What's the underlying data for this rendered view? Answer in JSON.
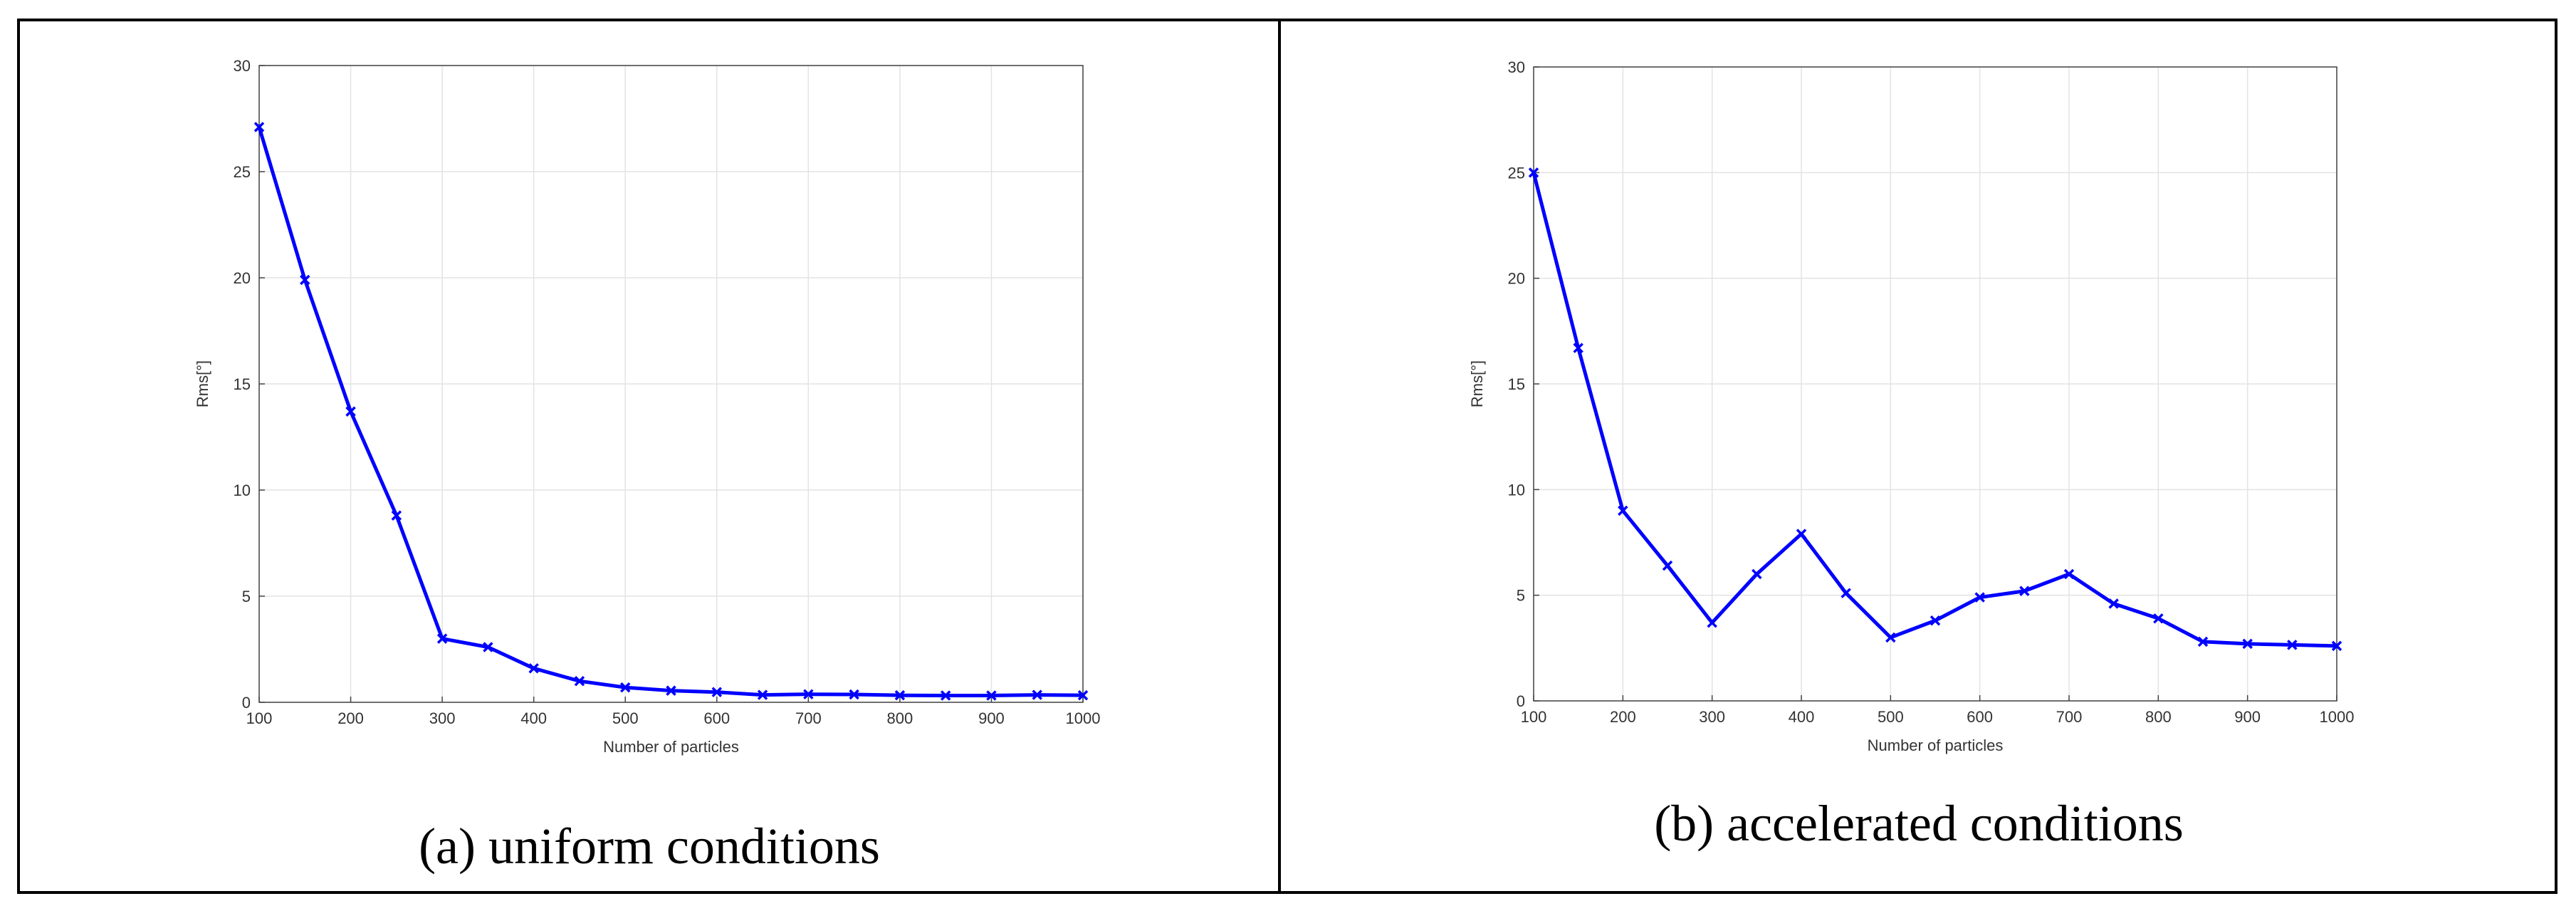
{
  "chart_data": [
    {
      "type": "line",
      "caption": "(a) uniform conditions",
      "xlabel": "Number of particles",
      "ylabel": "Rms[°]",
      "xlim": [
        100,
        1000
      ],
      "ylim": [
        0,
        30
      ],
      "xticks": [
        100,
        200,
        300,
        400,
        500,
        600,
        700,
        800,
        900,
        1000
      ],
      "yticks": [
        0,
        5,
        10,
        15,
        20,
        25,
        30
      ],
      "grid": true,
      "marker": "x",
      "color": "#0000ff",
      "x": [
        100,
        150,
        200,
        250,
        300,
        350,
        400,
        450,
        500,
        550,
        600,
        650,
        700,
        750,
        800,
        850,
        900,
        950,
        1000
      ],
      "y": [
        27.1,
        19.9,
        13.7,
        8.8,
        3.0,
        2.6,
        1.6,
        1.0,
        0.7,
        0.55,
        0.48,
        0.35,
        0.38,
        0.37,
        0.33,
        0.32,
        0.32,
        0.35,
        0.33
      ]
    },
    {
      "type": "line",
      "caption": "(b) accelerated conditions",
      "xlabel": "Number of particles",
      "ylabel": "Rms[°]",
      "xlim": [
        100,
        1000
      ],
      "ylim": [
        0,
        30
      ],
      "xticks": [
        100,
        200,
        300,
        400,
        500,
        600,
        700,
        800,
        900,
        1000
      ],
      "yticks": [
        0,
        5,
        10,
        15,
        20,
        25,
        30
      ],
      "grid": true,
      "marker": "x",
      "color": "#0000ff",
      "x": [
        100,
        150,
        200,
        250,
        300,
        350,
        400,
        450,
        500,
        550,
        600,
        650,
        700,
        750,
        800,
        850,
        900,
        950,
        1000
      ],
      "y": [
        25.0,
        16.7,
        9.0,
        6.4,
        3.7,
        6.0,
        7.9,
        5.1,
        3.0,
        3.8,
        4.9,
        5.2,
        6.0,
        4.6,
        3.9,
        2.8,
        2.7,
        2.65,
        2.6
      ]
    }
  ]
}
